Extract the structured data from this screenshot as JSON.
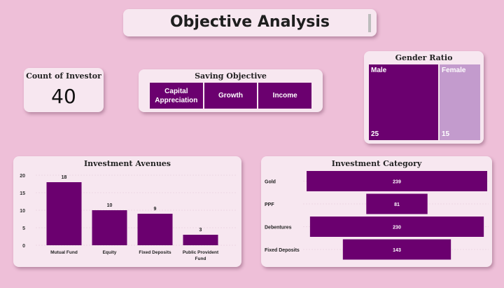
{
  "dashboard": {
    "title": "Objective Analysis"
  },
  "count_card": {
    "title": "Count of Investor",
    "value": "40"
  },
  "saving_objective": {
    "title": "Saving Objective",
    "tiles": [
      "Capital Appreciation",
      "Growth",
      "Income"
    ]
  },
  "gender_ratio": {
    "title": "Gender Ratio",
    "male": {
      "label": "Male",
      "value": "25"
    },
    "female": {
      "label": "Female",
      "value": "15"
    },
    "colors": {
      "male": "#6b006f",
      "female": "#c39bcd"
    }
  },
  "investment_avenues": {
    "title": "Investment Avenues"
  },
  "investment_category": {
    "title": "Investment Category"
  },
  "chart_data": [
    {
      "type": "bar",
      "title": "Investment Avenues",
      "categories": [
        "Mutual Fund",
        "Equity",
        "Fixed Deposits",
        "Public Provident Fund"
      ],
      "values": [
        18,
        10,
        9,
        3
      ],
      "y_ticks": [
        0,
        5,
        10,
        15,
        20
      ],
      "ylim": [
        0,
        20
      ],
      "color": "#6b006f",
      "grid": true
    },
    {
      "type": "bar",
      "orientation": "horizontal-funnel",
      "title": "Investment Category",
      "categories": [
        "Gold",
        "PPF",
        "Debentures",
        "Fixed Deposits"
      ],
      "values": [
        239,
        81,
        230,
        143
      ],
      "color": "#6b006f"
    }
  ]
}
